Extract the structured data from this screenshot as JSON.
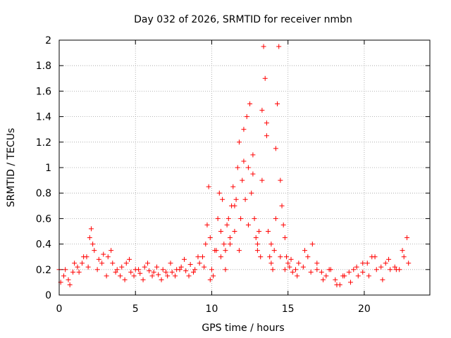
{
  "chart_data": {
    "type": "scatter",
    "title": "Day 032 of 2026, SRMTID for receiver nmbn",
    "xlabel": "GPS time / hours",
    "ylabel": "SRMTID / TECUs",
    "xlim": [
      0,
      24.3
    ],
    "ylim": [
      0,
      2
    ],
    "xticks": [
      0,
      5,
      10,
      15,
      20
    ],
    "yticks": [
      0,
      0.2,
      0.4,
      0.6,
      0.8,
      1,
      1.2,
      1.4,
      1.6,
      1.8,
      2
    ],
    "xtick_labels": [
      "0",
      "5",
      "10",
      "15",
      "20"
    ],
    "ytick_labels": [
      "0",
      "0.2",
      "0.4",
      "0.6",
      "0.8",
      "1",
      "1.2",
      "1.4",
      "1.6",
      "1.8",
      "2"
    ],
    "grid": true,
    "marker": "+",
    "series": [
      {
        "name": "SRMTID",
        "color": "#ff0000",
        "x": [
          0.0,
          0.3,
          0.6,
          0.9,
          1.2,
          1.5,
          1.8,
          2.0,
          2.1,
          2.3,
          2.6,
          2.9,
          3.2,
          3.5,
          3.8,
          4.1,
          4.4,
          4.7,
          5.0,
          5.3,
          5.6,
          5.9,
          6.2,
          6.5,
          6.8,
          7.1,
          7.4,
          7.7,
          8.0,
          8.3,
          8.6,
          8.9,
          9.2,
          9.4,
          9.6,
          9.7,
          9.8,
          9.9,
          10.0,
          10.1,
          10.2,
          10.4,
          10.5,
          10.6,
          10.7,
          10.8,
          10.9,
          11.0,
          11.1,
          11.2,
          11.3,
          11.4,
          11.5,
          11.6,
          11.7,
          11.8,
          11.9,
          12.0,
          12.1,
          12.2,
          12.3,
          12.4,
          12.5,
          12.6,
          12.7,
          12.8,
          12.9,
          13.0,
          13.1,
          13.2,
          13.3,
          13.4,
          13.5,
          13.6,
          13.7,
          13.8,
          13.9,
          14.0,
          14.1,
          14.2,
          14.3,
          14.4,
          14.5,
          14.6,
          14.7,
          14.8,
          14.9,
          15.0,
          15.1,
          15.3,
          15.5,
          15.7,
          16.0,
          16.3,
          16.6,
          16.9,
          17.2,
          17.5,
          17.8,
          18.1,
          18.4,
          18.7,
          19.0,
          19.3,
          19.6,
          19.9,
          20.2,
          20.5,
          20.8,
          21.1,
          21.4,
          21.7,
          22.0,
          22.3,
          22.6,
          22.8,
          0.1,
          0.4,
          0.7,
          1.0,
          1.3,
          1.6,
          1.9,
          2.2,
          2.5,
          2.8,
          3.1,
          3.4,
          3.7,
          4.0,
          4.3,
          4.6,
          4.9,
          5.2,
          5.5,
          5.8,
          6.1,
          6.4,
          6.7,
          7.0,
          7.3,
          7.6,
          7.9,
          8.2,
          8.5,
          8.8,
          9.1,
          9.5,
          9.9,
          10.3,
          10.6,
          10.9,
          11.2,
          11.5,
          11.8,
          12.1,
          12.4,
          12.7,
          13.0,
          13.3,
          13.6,
          13.9,
          14.2,
          14.5,
          14.8,
          15.2,
          15.6,
          16.1,
          16.5,
          16.9,
          17.3,
          17.7,
          18.2,
          18.6,
          19.1,
          19.5,
          19.9,
          20.3,
          20.7,
          21.2,
          21.6,
          22.1,
          22.5,
          22.9
        ],
        "y": [
          0.2,
          0.15,
          0.12,
          0.18,
          0.22,
          0.25,
          0.3,
          0.45,
          0.52,
          0.35,
          0.28,
          0.32,
          0.3,
          0.25,
          0.2,
          0.22,
          0.25,
          0.18,
          0.2,
          0.17,
          0.22,
          0.19,
          0.18,
          0.16,
          0.2,
          0.15,
          0.18,
          0.2,
          0.22,
          0.19,
          0.24,
          0.2,
          0.25,
          0.3,
          0.4,
          0.55,
          0.85,
          0.45,
          0.2,
          0.15,
          0.35,
          0.6,
          0.8,
          0.5,
          0.75,
          0.4,
          0.35,
          0.55,
          0.6,
          0.45,
          0.7,
          0.85,
          0.5,
          0.75,
          1.0,
          1.2,
          0.6,
          0.9,
          1.3,
          0.75,
          1.4,
          1.0,
          1.5,
          0.8,
          1.1,
          0.6,
          0.45,
          0.35,
          0.5,
          0.3,
          1.45,
          1.95,
          1.7,
          1.25,
          0.5,
          0.3,
          0.25,
          0.2,
          0.35,
          0.6,
          1.5,
          1.95,
          0.9,
          0.7,
          0.55,
          0.45,
          0.3,
          0.25,
          0.22,
          0.18,
          0.2,
          0.25,
          0.22,
          0.3,
          0.4,
          0.2,
          0.18,
          0.15,
          0.2,
          0.12,
          0.08,
          0.15,
          0.18,
          0.2,
          0.15,
          0.18,
          0.25,
          0.3,
          0.2,
          0.22,
          0.25,
          0.2,
          0.22,
          0.2,
          0.3,
          0.45,
          0.1,
          0.2,
          0.08,
          0.25,
          0.18,
          0.3,
          0.22,
          0.4,
          0.2,
          0.25,
          0.15,
          0.35,
          0.18,
          0.15,
          0.12,
          0.28,
          0.15,
          0.2,
          0.12,
          0.25,
          0.15,
          0.22,
          0.12,
          0.18,
          0.25,
          0.15,
          0.2,
          0.28,
          0.15,
          0.18,
          0.3,
          0.22,
          0.12,
          0.35,
          0.3,
          0.2,
          0.4,
          0.7,
          0.35,
          1.05,
          0.55,
          0.95,
          0.4,
          0.9,
          1.35,
          0.4,
          1.15,
          0.3,
          0.2,
          0.28,
          0.15,
          0.35,
          0.18,
          0.25,
          0.12,
          0.2,
          0.08,
          0.15,
          0.1,
          0.22,
          0.25,
          0.15,
          0.3,
          0.12,
          0.28,
          0.2,
          0.35,
          0.25
        ]
      }
    ]
  }
}
